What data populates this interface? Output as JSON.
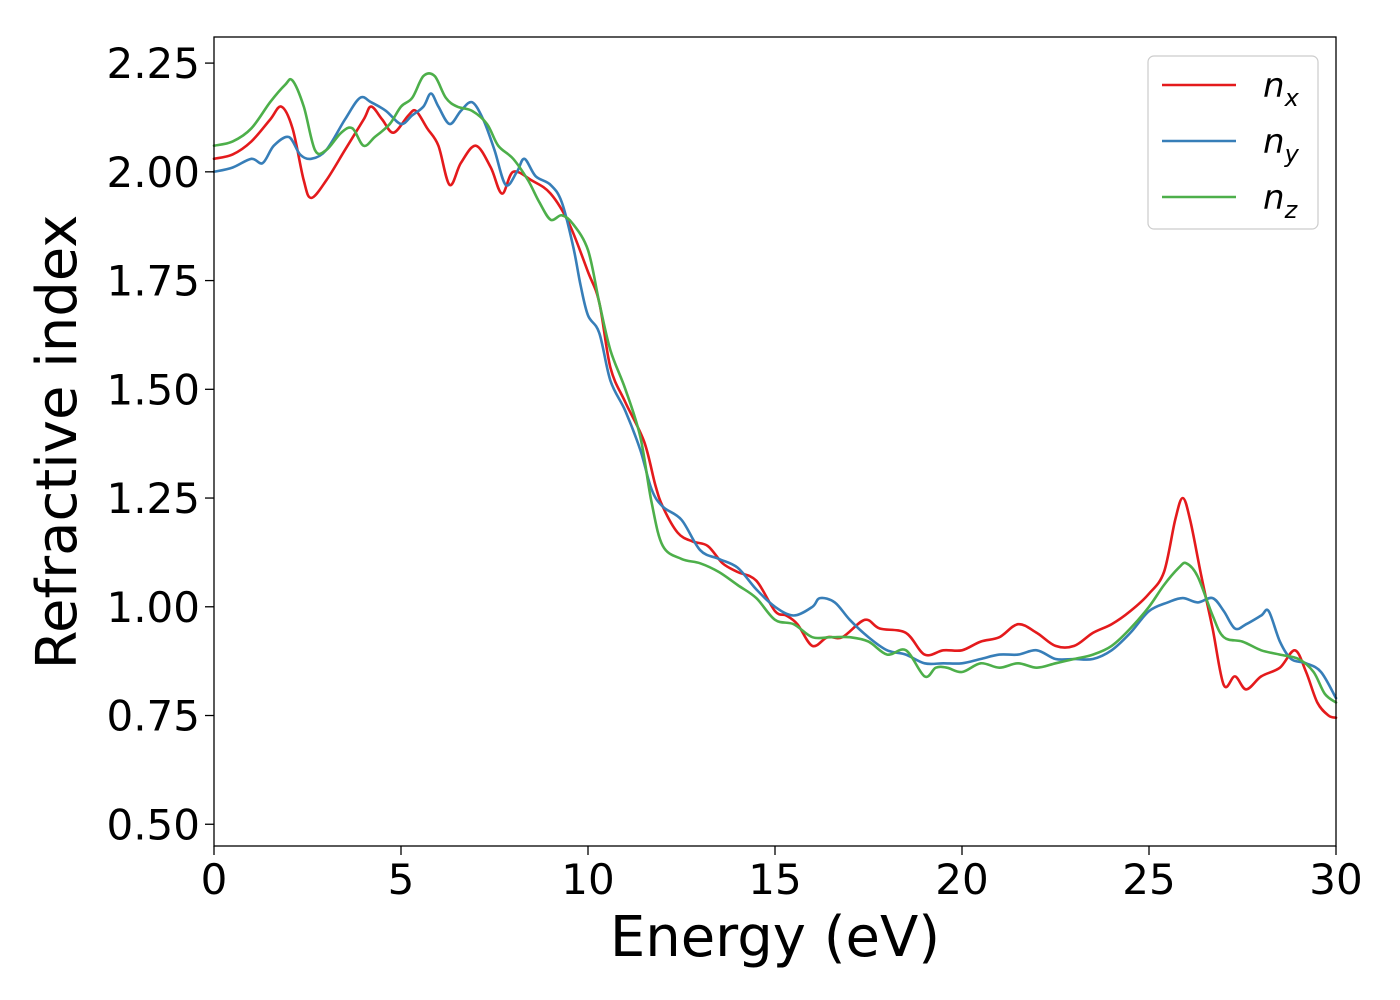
{
  "chart_data": {
    "type": "line",
    "xlabel": "Energy (eV)",
    "ylabel": "Refractive index",
    "xlim": [
      0,
      30
    ],
    "ylim": [
      0.45,
      2.31
    ],
    "x_ticks": [
      0,
      5,
      10,
      15,
      20,
      25,
      30
    ],
    "x_tick_labels": [
      "0",
      "5",
      "10",
      "15",
      "20",
      "25",
      "30"
    ],
    "y_ticks": [
      0.5,
      0.75,
      1.0,
      1.25,
      1.5,
      1.75,
      2.0,
      2.25
    ],
    "y_tick_labels": [
      "0.50",
      "0.75",
      "1.00",
      "1.25",
      "1.50",
      "1.75",
      "2.00",
      "2.25"
    ],
    "grid": false,
    "legend": {
      "position": "upper-right"
    },
    "series": [
      {
        "name": "n_x",
        "label_base": "n",
        "label_sub": "x",
        "color": "#e41a1c",
        "points": [
          [
            0,
            2.03
          ],
          [
            0.5,
            2.04
          ],
          [
            1,
            2.07
          ],
          [
            1.5,
            2.12
          ],
          [
            1.8,
            2.15
          ],
          [
            2.1,
            2.1
          ],
          [
            2.4,
            1.98
          ],
          [
            2.6,
            1.94
          ],
          [
            3,
            1.98
          ],
          [
            3.5,
            2.05
          ],
          [
            4,
            2.12
          ],
          [
            4.2,
            2.15
          ],
          [
            4.5,
            2.12
          ],
          [
            4.8,
            2.09
          ],
          [
            5.2,
            2.13
          ],
          [
            5.4,
            2.14
          ],
          [
            5.7,
            2.1
          ],
          [
            6,
            2.06
          ],
          [
            6.3,
            1.97
          ],
          [
            6.6,
            2.02
          ],
          [
            7,
            2.06
          ],
          [
            7.4,
            2.01
          ],
          [
            7.7,
            1.95
          ],
          [
            8,
            2.0
          ],
          [
            8.5,
            1.98
          ],
          [
            9,
            1.95
          ],
          [
            9.5,
            1.88
          ],
          [
            10,
            1.77
          ],
          [
            10.3,
            1.7
          ],
          [
            10.6,
            1.55
          ],
          [
            11,
            1.47
          ],
          [
            11.5,
            1.38
          ],
          [
            11.8,
            1.28
          ],
          [
            12,
            1.23
          ],
          [
            12.4,
            1.17
          ],
          [
            12.8,
            1.15
          ],
          [
            13.2,
            1.14
          ],
          [
            13.6,
            1.1
          ],
          [
            14,
            1.08
          ],
          [
            14.5,
            1.06
          ],
          [
            15,
            0.99
          ],
          [
            15.3,
            0.98
          ],
          [
            15.6,
            0.96
          ],
          [
            16,
            0.91
          ],
          [
            16.4,
            0.93
          ],
          [
            16.8,
            0.93
          ],
          [
            17.4,
            0.97
          ],
          [
            17.8,
            0.95
          ],
          [
            18.5,
            0.94
          ],
          [
            19,
            0.89
          ],
          [
            19.5,
            0.9
          ],
          [
            20,
            0.9
          ],
          [
            20.5,
            0.92
          ],
          [
            21,
            0.93
          ],
          [
            21.5,
            0.96
          ],
          [
            22,
            0.94
          ],
          [
            22.5,
            0.91
          ],
          [
            23,
            0.91
          ],
          [
            23.5,
            0.94
          ],
          [
            24,
            0.96
          ],
          [
            24.5,
            0.99
          ],
          [
            25,
            1.03
          ],
          [
            25.4,
            1.08
          ],
          [
            25.7,
            1.2
          ],
          [
            25.9,
            1.25
          ],
          [
            26.1,
            1.2
          ],
          [
            26.4,
            1.07
          ],
          [
            26.7,
            0.95
          ],
          [
            27,
            0.82
          ],
          [
            27.3,
            0.84
          ],
          [
            27.6,
            0.81
          ],
          [
            28,
            0.84
          ],
          [
            28.5,
            0.86
          ],
          [
            28.9,
            0.9
          ],
          [
            29.2,
            0.85
          ],
          [
            29.5,
            0.78
          ],
          [
            29.8,
            0.75
          ],
          [
            30,
            0.745
          ]
        ]
      },
      {
        "name": "n_y",
        "label_base": "n",
        "label_sub": "y",
        "color": "#377eb8",
        "points": [
          [
            0,
            2.0
          ],
          [
            0.5,
            2.01
          ],
          [
            1,
            2.03
          ],
          [
            1.3,
            2.02
          ],
          [
            1.6,
            2.06
          ],
          [
            2,
            2.08
          ],
          [
            2.3,
            2.04
          ],
          [
            2.6,
            2.03
          ],
          [
            3,
            2.05
          ],
          [
            3.5,
            2.12
          ],
          [
            3.9,
            2.17
          ],
          [
            4.2,
            2.16
          ],
          [
            4.6,
            2.14
          ],
          [
            5,
            2.11
          ],
          [
            5.3,
            2.13
          ],
          [
            5.6,
            2.15
          ],
          [
            5.8,
            2.18
          ],
          [
            6,
            2.15
          ],
          [
            6.3,
            2.11
          ],
          [
            6.6,
            2.14
          ],
          [
            6.9,
            2.16
          ],
          [
            7.2,
            2.12
          ],
          [
            7.5,
            2.05
          ],
          [
            7.8,
            1.97
          ],
          [
            8.1,
            2.0
          ],
          [
            8.3,
            2.03
          ],
          [
            8.6,
            1.99
          ],
          [
            9,
            1.97
          ],
          [
            9.3,
            1.93
          ],
          [
            9.6,
            1.83
          ],
          [
            9.8,
            1.74
          ],
          [
            10,
            1.67
          ],
          [
            10.3,
            1.63
          ],
          [
            10.6,
            1.52
          ],
          [
            11,
            1.45
          ],
          [
            11.4,
            1.36
          ],
          [
            11.7,
            1.27
          ],
          [
            12,
            1.23
          ],
          [
            12.5,
            1.2
          ],
          [
            13,
            1.13
          ],
          [
            13.5,
            1.11
          ],
          [
            14,
            1.09
          ],
          [
            14.5,
            1.04
          ],
          [
            15,
            1.0
          ],
          [
            15.5,
            0.98
          ],
          [
            16,
            1.0
          ],
          [
            16.2,
            1.02
          ],
          [
            16.6,
            1.01
          ],
          [
            17,
            0.97
          ],
          [
            17.5,
            0.93
          ],
          [
            18,
            0.9
          ],
          [
            18.5,
            0.89
          ],
          [
            19,
            0.87
          ],
          [
            19.5,
            0.87
          ],
          [
            20,
            0.87
          ],
          [
            20.5,
            0.88
          ],
          [
            21,
            0.89
          ],
          [
            21.5,
            0.89
          ],
          [
            22,
            0.9
          ],
          [
            22.5,
            0.88
          ],
          [
            23,
            0.88
          ],
          [
            23.5,
            0.88
          ],
          [
            24,
            0.9
          ],
          [
            24.5,
            0.94
          ],
          [
            25,
            0.99
          ],
          [
            25.5,
            1.01
          ],
          [
            25.9,
            1.02
          ],
          [
            26.3,
            1.01
          ],
          [
            26.7,
            1.02
          ],
          [
            27,
            0.99
          ],
          [
            27.3,
            0.95
          ],
          [
            27.6,
            0.96
          ],
          [
            28,
            0.98
          ],
          [
            28.2,
            0.99
          ],
          [
            28.5,
            0.92
          ],
          [
            28.8,
            0.88
          ],
          [
            29.2,
            0.87
          ],
          [
            29.6,
            0.85
          ],
          [
            30,
            0.79
          ]
        ]
      },
      {
        "name": "n_z",
        "label_base": "n",
        "label_sub": "z",
        "color": "#4daf4a",
        "points": [
          [
            0,
            2.06
          ],
          [
            0.5,
            2.07
          ],
          [
            1,
            2.1
          ],
          [
            1.5,
            2.16
          ],
          [
            1.9,
            2.2
          ],
          [
            2.1,
            2.21
          ],
          [
            2.4,
            2.15
          ],
          [
            2.7,
            2.05
          ],
          [
            3,
            2.05
          ],
          [
            3.4,
            2.09
          ],
          [
            3.7,
            2.1
          ],
          [
            4,
            2.06
          ],
          [
            4.3,
            2.08
          ],
          [
            4.7,
            2.11
          ],
          [
            5,
            2.15
          ],
          [
            5.3,
            2.17
          ],
          [
            5.6,
            2.22
          ],
          [
            5.9,
            2.22
          ],
          [
            6.2,
            2.17
          ],
          [
            6.5,
            2.15
          ],
          [
            6.9,
            2.14
          ],
          [
            7.3,
            2.11
          ],
          [
            7.6,
            2.06
          ],
          [
            8,
            2.03
          ],
          [
            8.4,
            1.98
          ],
          [
            8.7,
            1.93
          ],
          [
            9,
            1.89
          ],
          [
            9.3,
            1.9
          ],
          [
            9.6,
            1.88
          ],
          [
            10,
            1.82
          ],
          [
            10.3,
            1.7
          ],
          [
            10.6,
            1.59
          ],
          [
            11,
            1.5
          ],
          [
            11.4,
            1.39
          ],
          [
            11.7,
            1.24
          ],
          [
            12,
            1.14
          ],
          [
            12.5,
            1.11
          ],
          [
            13,
            1.1
          ],
          [
            13.5,
            1.08
          ],
          [
            14,
            1.05
          ],
          [
            14.5,
            1.02
          ],
          [
            15,
            0.97
          ],
          [
            15.5,
            0.96
          ],
          [
            16,
            0.93
          ],
          [
            16.5,
            0.93
          ],
          [
            17,
            0.93
          ],
          [
            17.5,
            0.92
          ],
          [
            18,
            0.89
          ],
          [
            18.5,
            0.9
          ],
          [
            19,
            0.84
          ],
          [
            19.3,
            0.86
          ],
          [
            19.6,
            0.86
          ],
          [
            20,
            0.85
          ],
          [
            20.5,
            0.87
          ],
          [
            21,
            0.86
          ],
          [
            21.5,
            0.87
          ],
          [
            22,
            0.86
          ],
          [
            22.5,
            0.87
          ],
          [
            23,
            0.88
          ],
          [
            23.5,
            0.89
          ],
          [
            24,
            0.91
          ],
          [
            24.5,
            0.95
          ],
          [
            25,
            1.0
          ],
          [
            25.4,
            1.05
          ],
          [
            25.8,
            1.09
          ],
          [
            26,
            1.1
          ],
          [
            26.3,
            1.07
          ],
          [
            26.7,
            0.98
          ],
          [
            27,
            0.93
          ],
          [
            27.5,
            0.92
          ],
          [
            28,
            0.9
          ],
          [
            28.5,
            0.89
          ],
          [
            29,
            0.88
          ],
          [
            29.4,
            0.85
          ],
          [
            29.7,
            0.8
          ],
          [
            30,
            0.78
          ]
        ]
      }
    ]
  }
}
